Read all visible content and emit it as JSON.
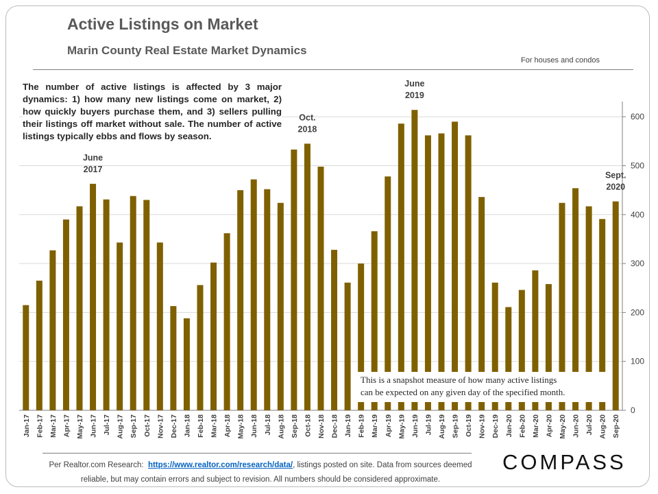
{
  "chart_data": {
    "type": "bar",
    "title": "Active Listings on Market",
    "subtitle": "Marin County Real Estate Market Dynamics",
    "note": "For houses and condos",
    "description": "The number of active listings is affected by 3 major dynamics: 1) how many new listings come on market, 2) how quickly buyers purchase them, and 3) sellers pulling their listings off market without sale. The number of active listings typically ebbs and flows by season.",
    "snapshot_note": [
      "This is a snapshot measure of how many active listings",
      "can be expected on any given day of the specified month."
    ],
    "annotations": [
      {
        "category": "Jun-17",
        "text": [
          "June",
          "2017"
        ]
      },
      {
        "category": "Oct-18",
        "text": [
          "Oct.",
          "2018"
        ]
      },
      {
        "category": "Jun-19",
        "text": [
          "June",
          "2019"
        ]
      },
      {
        "category": "Sep-20",
        "text": [
          "Sept.",
          "2020"
        ]
      }
    ],
    "categories": [
      "Jan-17",
      "Feb-17",
      "Mar-17",
      "Apr-17",
      "May-17",
      "Jun-17",
      "Jul-17",
      "Aug-17",
      "Sep-17",
      "Oct-17",
      "Nov-17",
      "Dec-17",
      "Jan-18",
      "Feb-18",
      "Mar-18",
      "Apr-18",
      "May-18",
      "Jun-18",
      "Jul-18",
      "Aug-18",
      "Sep-18",
      "Oct-18",
      "Nov-18",
      "Dec-18",
      "Jan-19",
      "Feb-19",
      "Mar-19",
      "Apr-19",
      "May-19",
      "Jun-19",
      "Jul-19",
      "Aug-19",
      "Sep-19",
      "Oct-19",
      "Nov-19",
      "Dec-19",
      "Jan-20",
      "Feb-20",
      "Mar-20",
      "Apr-20",
      "May-20",
      "Jun-20",
      "Jul-20",
      "Aug-20",
      "Sep-20"
    ],
    "values": [
      215,
      265,
      327,
      390,
      417,
      463,
      431,
      343,
      438,
      430,
      343,
      213,
      188,
      256,
      302,
      362,
      450,
      472,
      452,
      424,
      533,
      545,
      498,
      328,
      261,
      300,
      366,
      478,
      586,
      614,
      562,
      566,
      590,
      562,
      436,
      261,
      211,
      246,
      286,
      258,
      424,
      454,
      417,
      391,
      427
    ],
    "color": "#7f6000",
    "ylim": [
      0,
      650
    ],
    "yticks": [
      0,
      100,
      200,
      300,
      400,
      500,
      600
    ],
    "grid": true,
    "source": {
      "prefix": "Per Realtor.com Research:",
      "link": "https://www.realtor.com/research/data/",
      "rest": ", listings posted on site. Data from sources deemed reliable, but may contain errors and subject to revision. All numbers should be considered approximate."
    },
    "brand": "COMPASS"
  }
}
